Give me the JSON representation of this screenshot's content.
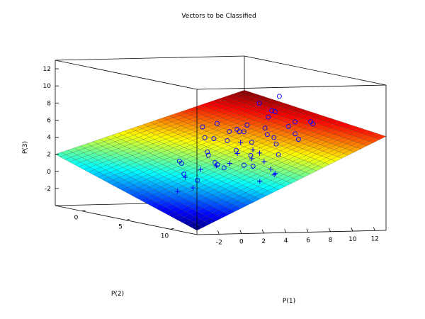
{
  "chart_data": {
    "type": "scatter",
    "title": "Vectors to be Classified",
    "xlabel": "P(1)",
    "ylabel": "P(2)",
    "zlabel": "P(3)",
    "x_ticks": [
      "-2",
      "0",
      "2",
      "4",
      "6",
      "8",
      "10",
      "12"
    ],
    "y_ticks": [
      "0",
      "5",
      "10"
    ],
    "z_ticks": [
      "-2",
      "0",
      "2",
      "4",
      "6",
      "8",
      "10",
      "12"
    ],
    "xlim": [
      -4,
      13
    ],
    "ylim": [
      -3,
      13
    ],
    "zlim": [
      -4,
      13
    ],
    "colormap": "jet",
    "surface": {
      "description_type": "separating plane",
      "z_at_corners": {
        "xmin_ymin": 2.0,
        "xmax_ymin": 9.0,
        "xmin_ymax": -3.5,
        "xmax_ymax": 7.0
      }
    },
    "series": [
      {
        "marker": "circle",
        "color": "#0000ff",
        "points": [
          [
            -1.5,
            10.5,
            8.0
          ],
          [
            0.5,
            11.0,
            7.5
          ],
          [
            -0.5,
            9.5,
            6.5
          ],
          [
            1.0,
            9.0,
            8.0
          ],
          [
            2.0,
            10.0,
            7.5
          ],
          [
            1.5,
            8.0,
            6.0
          ],
          [
            3.0,
            9.0,
            7.0
          ],
          [
            4.0,
            10.0,
            10.5
          ],
          [
            5.0,
            11.0,
            11.5
          ],
          [
            5.5,
            9.5,
            9.5
          ],
          [
            6.0,
            8.5,
            8.5
          ],
          [
            4.5,
            8.0,
            7.5
          ],
          [
            5.0,
            7.0,
            6.5
          ],
          [
            6.5,
            7.5,
            7.0
          ],
          [
            7.0,
            8.0,
            9.0
          ],
          [
            8.0,
            9.0,
            8.0
          ],
          [
            3.5,
            7.0,
            5.5
          ],
          [
            2.5,
            6.0,
            4.0
          ],
          [
            3.0,
            5.5,
            3.5
          ],
          [
            4.0,
            5.0,
            2.5
          ],
          [
            5.5,
            5.5,
            4.0
          ],
          [
            6.5,
            6.0,
            5.0
          ],
          [
            7.5,
            6.5,
            6.0
          ],
          [
            8.5,
            6.0,
            5.5
          ],
          [
            9.0,
            7.0,
            7.0
          ],
          [
            10.0,
            6.5,
            6.0
          ],
          [
            11.0,
            7.0,
            7.5
          ],
          [
            9.5,
            5.0,
            4.5
          ],
          [
            8.0,
            4.0,
            3.0
          ],
          [
            7.0,
            4.5,
            2.0
          ],
          [
            6.0,
            3.5,
            1.5
          ],
          [
            5.0,
            4.0,
            2.0
          ],
          [
            4.0,
            3.0,
            0.0
          ],
          [
            2.0,
            4.0,
            1.0
          ],
          [
            1.0,
            5.0,
            2.5
          ],
          [
            0.0,
            6.0,
            3.0
          ],
          [
            10.5,
            4.0,
            3.0
          ],
          [
            11.5,
            5.0,
            5.0
          ],
          [
            12.0,
            6.0,
            7.0
          ],
          [
            9.0,
            3.0,
            1.5
          ]
        ]
      },
      {
        "marker": "plus",
        "color": "#0000ff",
        "points": [
          [
            5.5,
            6.0,
            5.0
          ],
          [
            6.0,
            5.0,
            3.5
          ],
          [
            7.0,
            5.5,
            4.0
          ],
          [
            8.0,
            5.0,
            3.5
          ],
          [
            4.5,
            4.5,
            2.0
          ],
          [
            3.5,
            4.0,
            1.5
          ],
          [
            2.5,
            3.5,
            0.5
          ],
          [
            3.0,
            2.0,
            -1.5
          ],
          [
            4.0,
            2.5,
            -1.0
          ],
          [
            6.5,
            3.5,
            2.0
          ],
          [
            8.5,
            3.5,
            2.5
          ],
          [
            10.0,
            3.0,
            2.0
          ],
          [
            12.5,
            1.0,
            0.0
          ],
          [
            12.0,
            0.0,
            -1.0
          ],
          [
            13.0,
            0.5,
            0.0
          ],
          [
            11.0,
            2.5,
            1.0
          ]
        ]
      }
    ]
  }
}
